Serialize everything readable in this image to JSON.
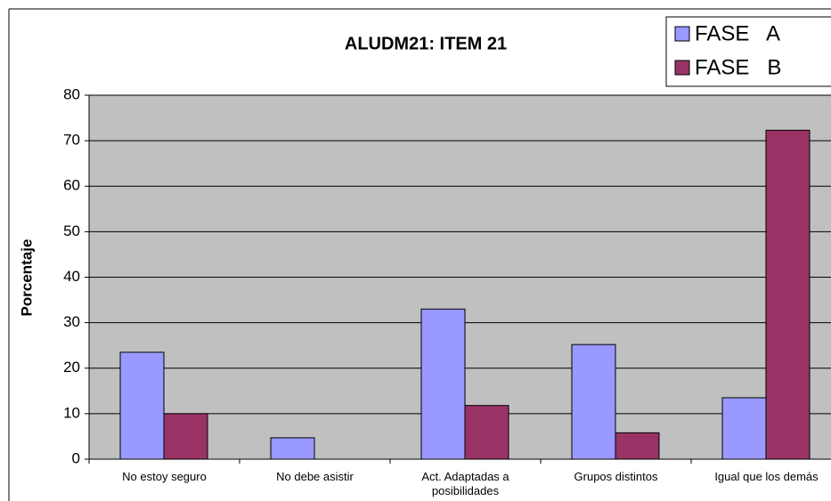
{
  "chart_data": {
    "type": "bar",
    "title": "ALUDM21: ITEM 21",
    "ylabel": "Porcentaje",
    "categories": [
      "No estoy seguro",
      "No debe asistir",
      "Act. Adaptadas a posibilidades",
      "Grupos distintos",
      "Igual que los demás"
    ],
    "series": [
      {
        "name": "FASE   A",
        "color": "#9999ff",
        "values": [
          23.5,
          4.7,
          33,
          25.2,
          13.5
        ]
      },
      {
        "name": "FASE   B",
        "color": "#993366",
        "values": [
          10,
          0,
          11.8,
          5.8,
          72.3
        ]
      }
    ],
    "ylim": [
      0,
      80
    ],
    "yticks": [
      0,
      10,
      20,
      30,
      40,
      50,
      60,
      70,
      80
    ],
    "grid": true,
    "legend": "top-right",
    "background": "#c0c0c0"
  }
}
